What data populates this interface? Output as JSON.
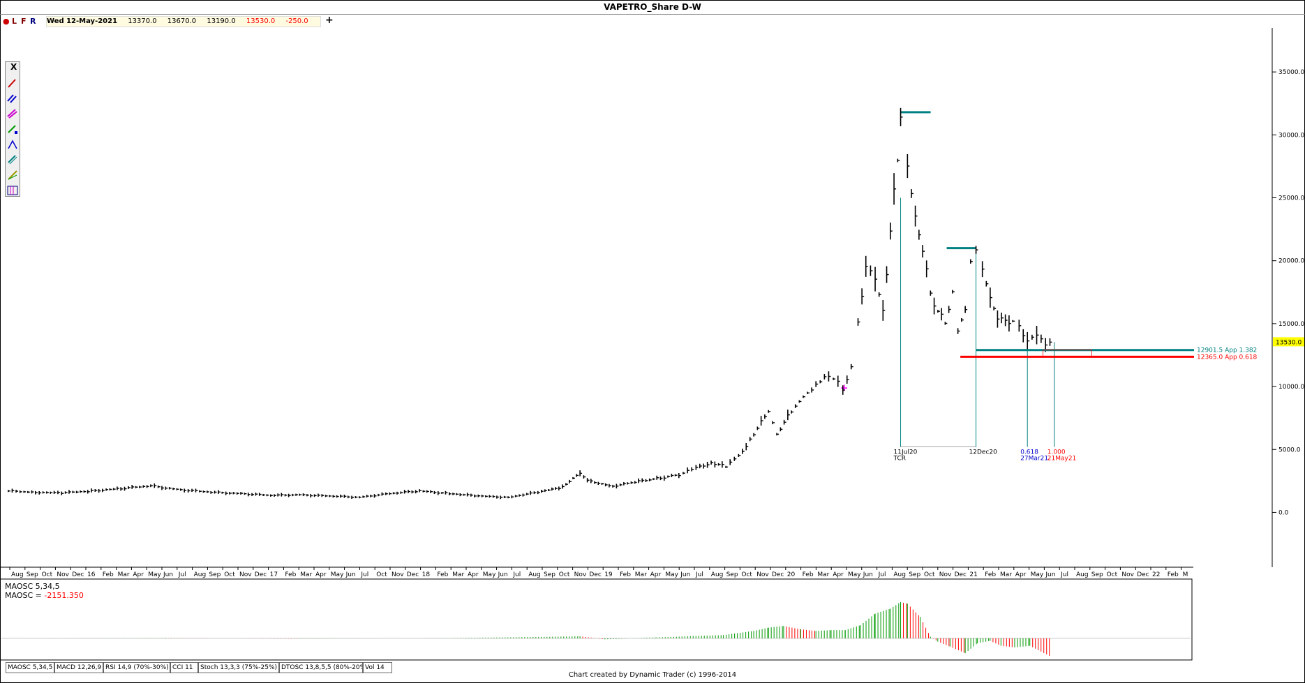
{
  "window": {
    "title": "VAPETRO_Share D-W"
  },
  "info": {
    "flags": [
      "L",
      "F",
      "R"
    ],
    "date": "Wed 12-May-2021",
    "open": "13370.0",
    "high": "13670.0",
    "low": "13190.0",
    "close": "13530.0",
    "change": "-250.0",
    "add_label": "+"
  },
  "toolbox": {
    "close_label": "X",
    "tools": [
      "T",
      "P",
      "P",
      "B",
      "R",
      "R",
      "C",
      "T"
    ]
  },
  "price_axis": {
    "ticks": [
      "35000.0",
      "30000.0",
      "25000.0",
      "20000.0",
      "15000.0",
      "10000.0",
      "5000.0",
      "0.0"
    ],
    "last_price": "13530.0"
  },
  "time_axis": {
    "labels": [
      "Aug",
      "Sep",
      "Oct",
      "Nov",
      "Dec",
      "16",
      "Feb",
      "Mar",
      "Apr",
      "May",
      "Jun",
      "Jul",
      "Aug",
      "Sep",
      "Oct",
      "Nov",
      "Dec",
      "17",
      "Feb",
      "Mar",
      "Apr",
      "May",
      "Jun",
      "Jul",
      "Oct",
      "Nov",
      "Dec",
      "18",
      "Feb",
      "Mar",
      "Apr",
      "May",
      "Jun",
      "Jul",
      "Aug",
      "Sep",
      "Oct",
      "Nov",
      "Dec",
      "19",
      "Feb",
      "Mar",
      "Apr",
      "May",
      "Jun",
      "Jul",
      "Aug",
      "Sep",
      "Oct",
      "Nov",
      "Dec",
      "20",
      "Feb",
      "Mar",
      "Apr",
      "May",
      "Jun",
      "Jul",
      "Aug",
      "Sep",
      "Oct",
      "Nov",
      "Dec",
      "21",
      "Feb",
      "Mar",
      "Apr",
      "May",
      "Jun",
      "Jul",
      "Aug",
      "Sep",
      "Oct",
      "Nov",
      "Dec",
      "22",
      "Feb",
      "M"
    ]
  },
  "annotations": {
    "markers": [
      {
        "date_label": "11Jul20",
        "sub_label": "TCR",
        "color": "#000000"
      },
      {
        "date_label": "12Dec20",
        "sub_label": "",
        "color": "#000000"
      },
      {
        "date_label": "0.618",
        "sub_label": "27Mar21",
        "color": "#0000cc"
      },
      {
        "date_label": "1.000",
        "sub_label": "21May21",
        "color": "#ff0000"
      }
    ],
    "levels": [
      {
        "label": "12901.5 App 1.382",
        "value": 12901.5,
        "color": "#008080"
      },
      {
        "label": "12365.0 App 0.618",
        "value": 12365.0,
        "color": "#ff0000"
      }
    ]
  },
  "indicator": {
    "name_line": "MAOSC 5,34,5",
    "value_prefix": "MAOSC = ",
    "value": "-2151.350",
    "up_color": "#009900",
    "down_color": "#ff0000"
  },
  "tabs": [
    "MAOSC 5,34,5",
    "MACD 12,26,9",
    "RSI 14,9 (70%-30%)",
    "CCI 11",
    "Stoch 13,3,3 (75%-25%)",
    "DTOSC 13,8,5,5 (80%-20%)",
    "Vol 14"
  ],
  "footer": {
    "credit": "Chart created by Dynamic Trader  (c)  1996-2014"
  },
  "chart_data": {
    "type": "line",
    "title": "VAPETRO_Share D-W",
    "ylim": [
      -4300,
      38500
    ],
    "x_range": [
      "2015-07",
      "2022-03"
    ],
    "series": [
      {
        "values": [
          [
            "2015-07-15",
            1700
          ],
          [
            "2015-09-01",
            1600
          ],
          [
            "2015-11-01",
            1550
          ],
          [
            "2016-01-01",
            1700
          ],
          [
            "2016-03-01",
            1900
          ],
          [
            "2016-05-01",
            2100
          ],
          [
            "2016-07-01",
            1800
          ],
          [
            "2016-09-01",
            1600
          ],
          [
            "2016-11-01",
            1500
          ],
          [
            "2017-01-01",
            1350
          ],
          [
            "2017-03-01",
            1400
          ],
          [
            "2017-05-01",
            1300
          ],
          [
            "2017-07-01",
            1200
          ],
          [
            "2017-09-01",
            1500
          ],
          [
            "2017-11-01",
            1700
          ],
          [
            "2018-01-01",
            1500
          ],
          [
            "2018-03-01",
            1300
          ],
          [
            "2018-05-01",
            1200
          ],
          [
            "2018-07-01",
            1600
          ],
          [
            "2018-08-20",
            2000
          ],
          [
            "2018-09-25",
            3200
          ],
          [
            "2018-10-10",
            2500
          ],
          [
            "2018-12-01",
            2100
          ],
          [
            "2019-01-15",
            2400
          ],
          [
            "2019-03-01",
            2700
          ],
          [
            "2019-04-15",
            3000
          ],
          [
            "2019-05-20",
            3500
          ],
          [
            "2019-06-20",
            4000
          ],
          [
            "2019-07-20",
            3600
          ],
          [
            "2019-08-15",
            4500
          ],
          [
            "2019-09-15",
            6200
          ],
          [
            "2019-10-15",
            8000
          ],
          [
            "2019-11-01",
            6200
          ],
          [
            "2019-12-01",
            8000
          ],
          [
            "2019-12-25",
            9200
          ],
          [
            "2020-01-20",
            10100
          ],
          [
            "2020-02-15",
            11000
          ],
          [
            "2020-03-05",
            10200
          ],
          [
            "2020-03-15",
            9900
          ],
          [
            "2020-04-01",
            11500
          ],
          [
            "2020-04-15",
            15000
          ],
          [
            "2020-05-01",
            20000
          ],
          [
            "2020-05-20",
            18000
          ],
          [
            "2020-06-05",
            16500
          ],
          [
            "2020-06-20",
            22000
          ],
          [
            "2020-07-05",
            28000
          ],
          [
            "2020-07-11",
            31800
          ],
          [
            "2020-07-25",
            27000
          ],
          [
            "2020-08-10",
            24000
          ],
          [
            "2020-08-25",
            20500
          ],
          [
            "2020-09-10",
            17500
          ],
          [
            "2020-09-25",
            16000
          ],
          [
            "2020-10-10",
            15000
          ],
          [
            "2020-10-25",
            17500
          ],
          [
            "2020-11-05",
            14500
          ],
          [
            "2020-11-20",
            16000
          ],
          [
            "2020-12-01",
            20000
          ],
          [
            "2020-12-12",
            21000
          ],
          [
            "2020-12-25",
            19000
          ],
          [
            "2021-01-10",
            17500
          ],
          [
            "2021-01-25",
            15000
          ],
          [
            "2021-02-10",
            15500
          ],
          [
            "2021-02-25",
            15200
          ],
          [
            "2021-03-10",
            14600
          ],
          [
            "2021-03-27",
            14000
          ],
          [
            "2021-04-15",
            13700
          ],
          [
            "2021-05-12",
            13530
          ]
        ]
      }
    ],
    "indicator_series": {
      "name": "MAOSC 5,34,5",
      "values": [
        [
          "2015-07-15",
          0
        ],
        [
          "2016-06-01",
          30
        ],
        [
          "2017-03-01",
          -30
        ],
        [
          "2018-01-01",
          20
        ],
        [
          "2018-09-25",
          250
        ],
        [
          "2018-11-15",
          -120
        ],
        [
          "2019-03-01",
          120
        ],
        [
          "2019-07-15",
          400
        ],
        [
          "2019-09-15",
          900
        ],
        [
          "2019-10-15",
          1300
        ],
        [
          "2019-11-15",
          1500
        ],
        [
          "2019-12-20",
          1100
        ],
        [
          "2020-01-20",
          900
        ],
        [
          "2020-02-20",
          1000
        ],
        [
          "2020-03-20",
          1000
        ],
        [
          "2020-04-20",
          1600
        ],
        [
          "2020-05-20",
          3000
        ],
        [
          "2020-06-20",
          3600
        ],
        [
          "2020-07-11",
          4400
        ],
        [
          "2020-07-25",
          4200
        ],
        [
          "2020-08-20",
          2600
        ],
        [
          "2020-09-10",
          200
        ],
        [
          "2020-09-25",
          -400
        ],
        [
          "2020-10-20",
          -1000
        ],
        [
          "2020-11-20",
          -1800
        ],
        [
          "2020-12-15",
          -600
        ],
        [
          "2021-01-10",
          -300
        ],
        [
          "2021-02-01",
          -900
        ],
        [
          "2021-03-01",
          -1100
        ],
        [
          "2021-04-01",
          -900
        ],
        [
          "2021-05-12",
          -2151.35
        ]
      ]
    }
  }
}
